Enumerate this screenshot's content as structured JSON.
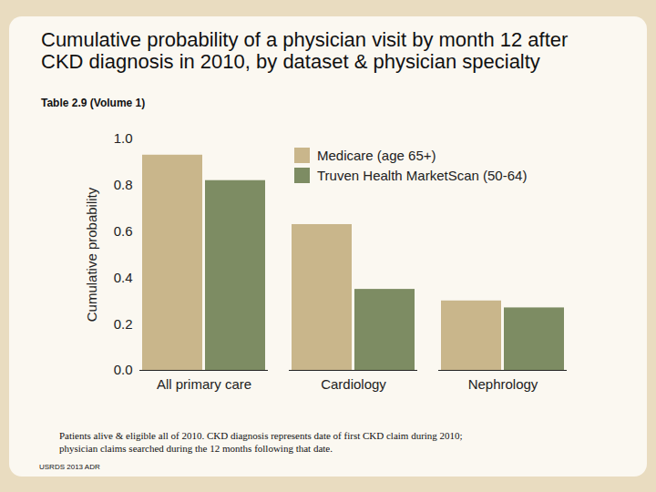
{
  "chart_data": {
    "type": "bar",
    "title": "Cumulative probability of a physician visit by month 12 after CKD diagnosis in 2010, by dataset & physician specialty",
    "subtitle": "Table 2.9 (Volume 1)",
    "caption": "Patients alive & eligible all of 2010. CKD diagnosis represents date of first CKD claim during 2010; physician claims searched during the 12 months following that date.",
    "source": "USRDS 2013 ADR",
    "ylabel": "Cumulative probability",
    "categories": [
      "All primary care",
      "Cardiology",
      "Nephrology"
    ],
    "series": [
      {
        "name": "Medicare (age 65+)",
        "color": "#c9b68b",
        "values": [
          0.93,
          0.63,
          0.3
        ]
      },
      {
        "name": "Truven Health MarketScan (50-64)",
        "color": "#7d8c63",
        "values": [
          0.82,
          0.35,
          0.27
        ]
      }
    ],
    "ylim": [
      0,
      1
    ],
    "yticks": [
      {
        "value": 0,
        "label": "0.0"
      },
      0.2,
      0.4,
      0.6,
      0.8,
      {
        "value": 1,
        "label": "1.0"
      }
    ],
    "grid": false,
    "legend": "top-right",
    "data_labels": false
  }
}
